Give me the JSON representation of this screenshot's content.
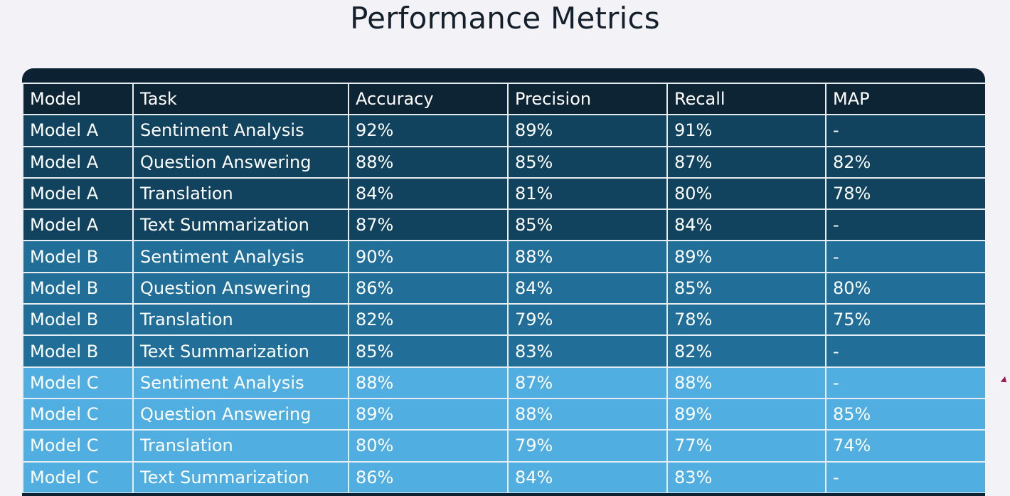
{
  "title": "Performance Metrics",
  "table": {
    "headers": [
      "Model",
      "Task",
      "Accuracy",
      "Precision",
      "Recall",
      "MAP"
    ],
    "rows": [
      {
        "group": "a",
        "cells": [
          "Model A",
          "Sentiment Analysis",
          "92%",
          "89%",
          "91%",
          "-"
        ]
      },
      {
        "group": "a",
        "cells": [
          "Model A",
          "Question Answering",
          "88%",
          "85%",
          "87%",
          "82%"
        ]
      },
      {
        "group": "a",
        "cells": [
          "Model A",
          "Translation",
          "84%",
          "81%",
          "80%",
          "78%"
        ]
      },
      {
        "group": "a",
        "cells": [
          "Model A",
          "Text Summarization",
          "87%",
          "85%",
          "84%",
          "-"
        ]
      },
      {
        "group": "b",
        "cells": [
          "Model B",
          "Sentiment Analysis",
          "90%",
          "88%",
          "89%",
          "-"
        ]
      },
      {
        "group": "b",
        "cells": [
          "Model B",
          "Question Answering",
          "86%",
          "84%",
          "85%",
          "80%"
        ]
      },
      {
        "group": "b",
        "cells": [
          "Model B",
          "Translation",
          "82%",
          "79%",
          "78%",
          "75%"
        ]
      },
      {
        "group": "b",
        "cells": [
          "Model B",
          "Text Summarization",
          "85%",
          "83%",
          "82%",
          "-"
        ]
      },
      {
        "group": "c",
        "cells": [
          "Model C",
          "Sentiment Analysis",
          "88%",
          "87%",
          "88%",
          "-"
        ]
      },
      {
        "group": "c",
        "cells": [
          "Model C",
          "Question Answering",
          "89%",
          "88%",
          "89%",
          "85%"
        ]
      },
      {
        "group": "c",
        "cells": [
          "Model C",
          "Translation",
          "80%",
          "79%",
          "77%",
          "74%"
        ]
      },
      {
        "group": "c",
        "cells": [
          "Model C",
          "Text Summarization",
          "86%",
          "84%",
          "83%",
          "-"
        ]
      }
    ]
  },
  "colors": {
    "header_bg": "#0d2434",
    "model_a_bg": "#11435f",
    "model_b_bg": "#216f99",
    "model_c_bg": "#51aee0",
    "cursor": "#9b1b5a"
  }
}
